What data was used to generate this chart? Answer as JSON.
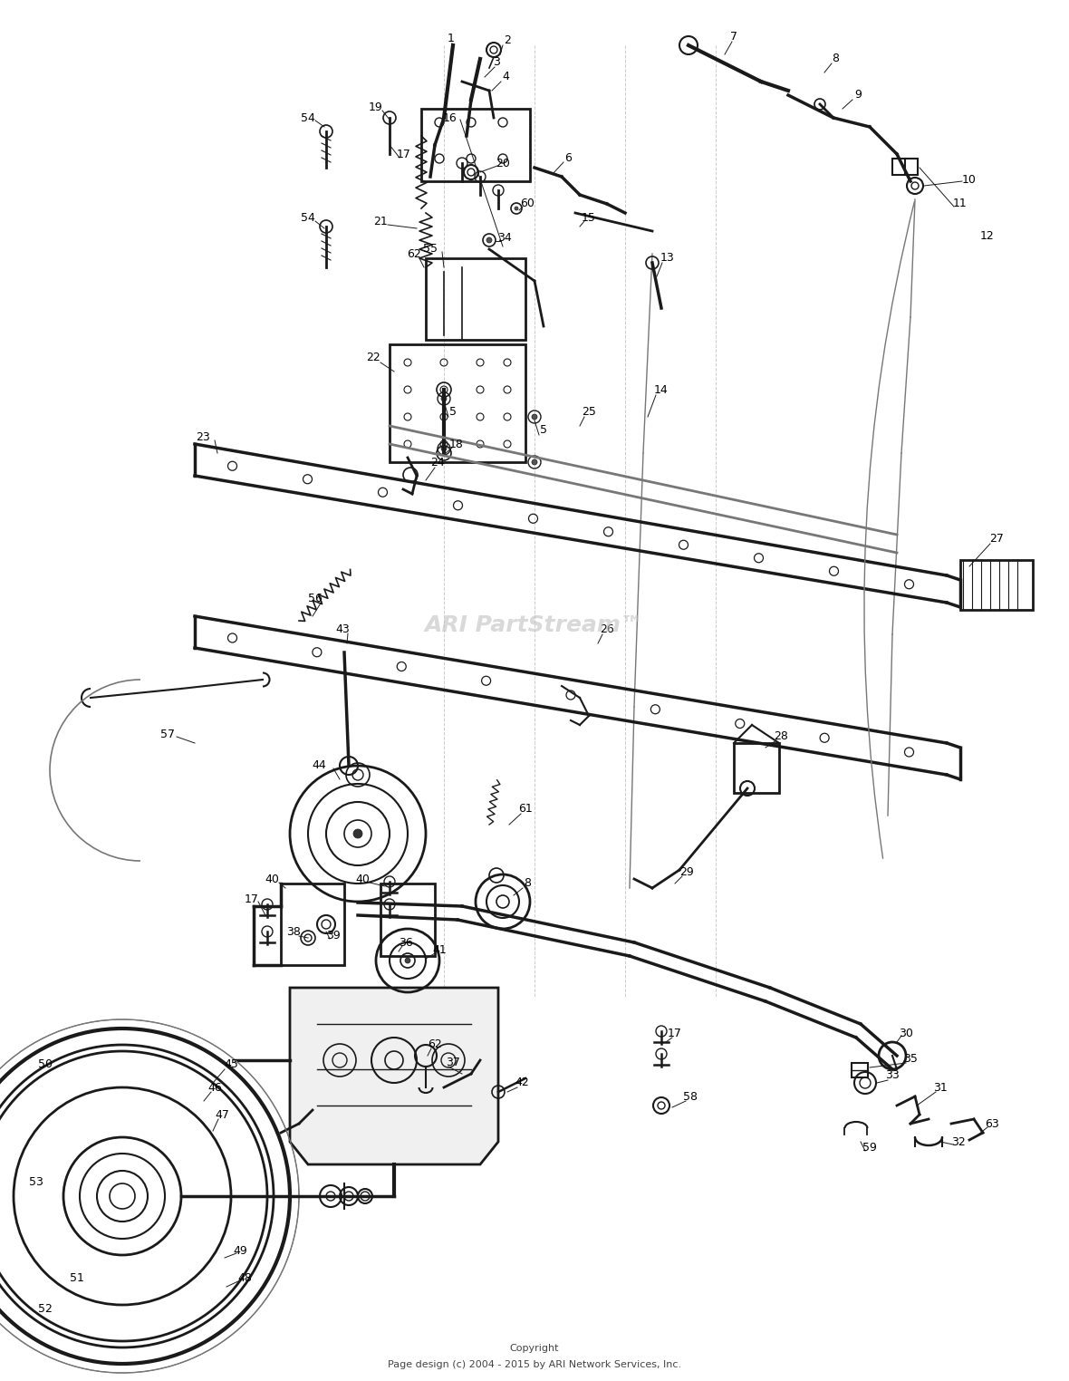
{
  "watermark": "ARI PartStream™",
  "copyright_line1": "Copyright",
  "copyright_line2": "Page design (c) 2004 - 2015 by ARI Network Services, Inc.",
  "bg_color": "#ffffff",
  "line_color": "#1a1a1a",
  "gray_color": "#777777",
  "light_gray": "#bbbbbb"
}
